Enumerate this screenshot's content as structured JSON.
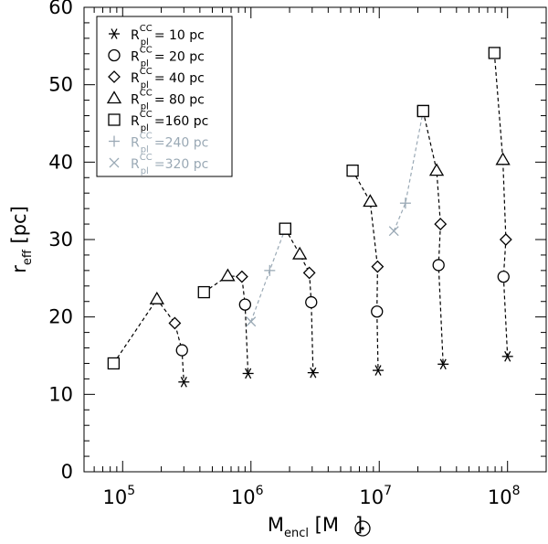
{
  "chart_data": {
    "type": "scatter",
    "xscale": "log",
    "xlim": [
      50000,
      200000000
    ],
    "ylim": [
      0,
      60
    ],
    "xticks": [
      {
        "value": 100000,
        "base": "10",
        "exp": "5"
      },
      {
        "value": 1000000,
        "base": "10",
        "exp": "6"
      },
      {
        "value": 10000000,
        "base": "10",
        "exp": "7"
      },
      {
        "value": 100000000,
        "base": "10",
        "exp": "8"
      }
    ],
    "yticks": [
      {
        "value": 0,
        "label": "0"
      },
      {
        "value": 10,
        "label": "10"
      },
      {
        "value": 20,
        "label": "20"
      },
      {
        "value": 30,
        "label": "30"
      },
      {
        "value": 40,
        "label": "40"
      },
      {
        "value": 50,
        "label": "50"
      },
      {
        "value": 60,
        "label": "60"
      }
    ],
    "xlabel": {
      "main": "M",
      "sub": "encl",
      "unit_open": "[M",
      "unit_close": "]"
    },
    "ylabel": {
      "main": "r",
      "sub": "eff",
      "unit": "[pc]"
    },
    "legend": {
      "position": "top-left",
      "var_main": "R",
      "var_sub": "pl",
      "var_sup": "CC",
      "entries": [
        {
          "marker": "asterisk",
          "value": "= 10 pc",
          "color": "#000000"
        },
        {
          "marker": "circle",
          "value": "= 20 pc",
          "color": "#000000"
        },
        {
          "marker": "diamond",
          "value": "= 40 pc",
          "color": "#000000"
        },
        {
          "marker": "triangle",
          "value": "= 80 pc",
          "color": "#000000"
        },
        {
          "marker": "square",
          "value": "=160 pc",
          "color": "#000000"
        },
        {
          "marker": "plus",
          "value": "=240 pc",
          "color": "#9aa9b5"
        },
        {
          "marker": "cross",
          "value": "=320 pc",
          "color": "#9aa9b5"
        }
      ]
    },
    "groups": [
      {
        "points": [
          {
            "x": 85000,
            "y": 14.0,
            "marker": "square"
          },
          {
            "x": 185000,
            "y": 22.3,
            "marker": "triangle"
          },
          {
            "x": 255000,
            "y": 19.2,
            "marker": "diamond"
          },
          {
            "x": 290000,
            "y": 15.7,
            "marker": "circle"
          },
          {
            "x": 300000,
            "y": 11.6,
            "marker": "asterisk"
          }
        ]
      },
      {
        "points": [
          {
            "x": 430000,
            "y": 23.2,
            "marker": "square"
          },
          {
            "x": 660000,
            "y": 25.3,
            "marker": "triangle"
          },
          {
            "x": 850000,
            "y": 25.2,
            "marker": "diamond"
          },
          {
            "x": 900000,
            "y": 21.6,
            "marker": "circle"
          },
          {
            "x": 950000,
            "y": 12.7,
            "marker": "asterisk"
          }
        ]
      },
      {
        "points": [
          {
            "x": 1000000,
            "y": 19.4,
            "marker": "cross"
          },
          {
            "x": 1400000,
            "y": 26.0,
            "marker": "plus"
          },
          {
            "x": 1850000,
            "y": 31.4,
            "marker": "square"
          }
        ],
        "gray": true
      },
      {
        "points": [
          {
            "x": 1850000,
            "y": 31.4,
            "marker": "square"
          },
          {
            "x": 2400000,
            "y": 28.1,
            "marker": "triangle"
          },
          {
            "x": 2850000,
            "y": 25.7,
            "marker": "diamond"
          },
          {
            "x": 2950000,
            "y": 21.9,
            "marker": "circle"
          },
          {
            "x": 3050000,
            "y": 12.8,
            "marker": "asterisk"
          }
        ]
      },
      {
        "points": [
          {
            "x": 6200000,
            "y": 38.9,
            "marker": "square"
          },
          {
            "x": 8500000,
            "y": 34.9,
            "marker": "triangle"
          },
          {
            "x": 9700000,
            "y": 26.5,
            "marker": "diamond"
          },
          {
            "x": 9600000,
            "y": 20.7,
            "marker": "circle"
          },
          {
            "x": 9800000,
            "y": 13.1,
            "marker": "asterisk"
          }
        ]
      },
      {
        "points": [
          {
            "x": 13000000,
            "y": 31.1,
            "marker": "cross"
          },
          {
            "x": 16000000,
            "y": 34.7,
            "marker": "plus"
          },
          {
            "x": 22000000,
            "y": 46.6,
            "marker": "square"
          }
        ],
        "gray": true
      },
      {
        "points": [
          {
            "x": 22000000,
            "y": 46.6,
            "marker": "square"
          },
          {
            "x": 28000000,
            "y": 38.9,
            "marker": "triangle"
          },
          {
            "x": 30000000,
            "y": 32.0,
            "marker": "diamond"
          },
          {
            "x": 29000000,
            "y": 26.7,
            "marker": "circle"
          },
          {
            "x": 31500000,
            "y": 13.9,
            "marker": "asterisk"
          }
        ]
      },
      {
        "points": [
          {
            "x": 79000000,
            "y": 54.1,
            "marker": "square"
          },
          {
            "x": 92000000,
            "y": 40.3,
            "marker": "triangle"
          },
          {
            "x": 97000000,
            "y": 30.0,
            "marker": "diamond"
          },
          {
            "x": 93000000,
            "y": 25.2,
            "marker": "circle"
          },
          {
            "x": 100000000,
            "y": 14.9,
            "marker": "asterisk"
          }
        ]
      }
    ],
    "colors": {
      "black": "#000000",
      "gray": "#9aa9b5"
    }
  }
}
